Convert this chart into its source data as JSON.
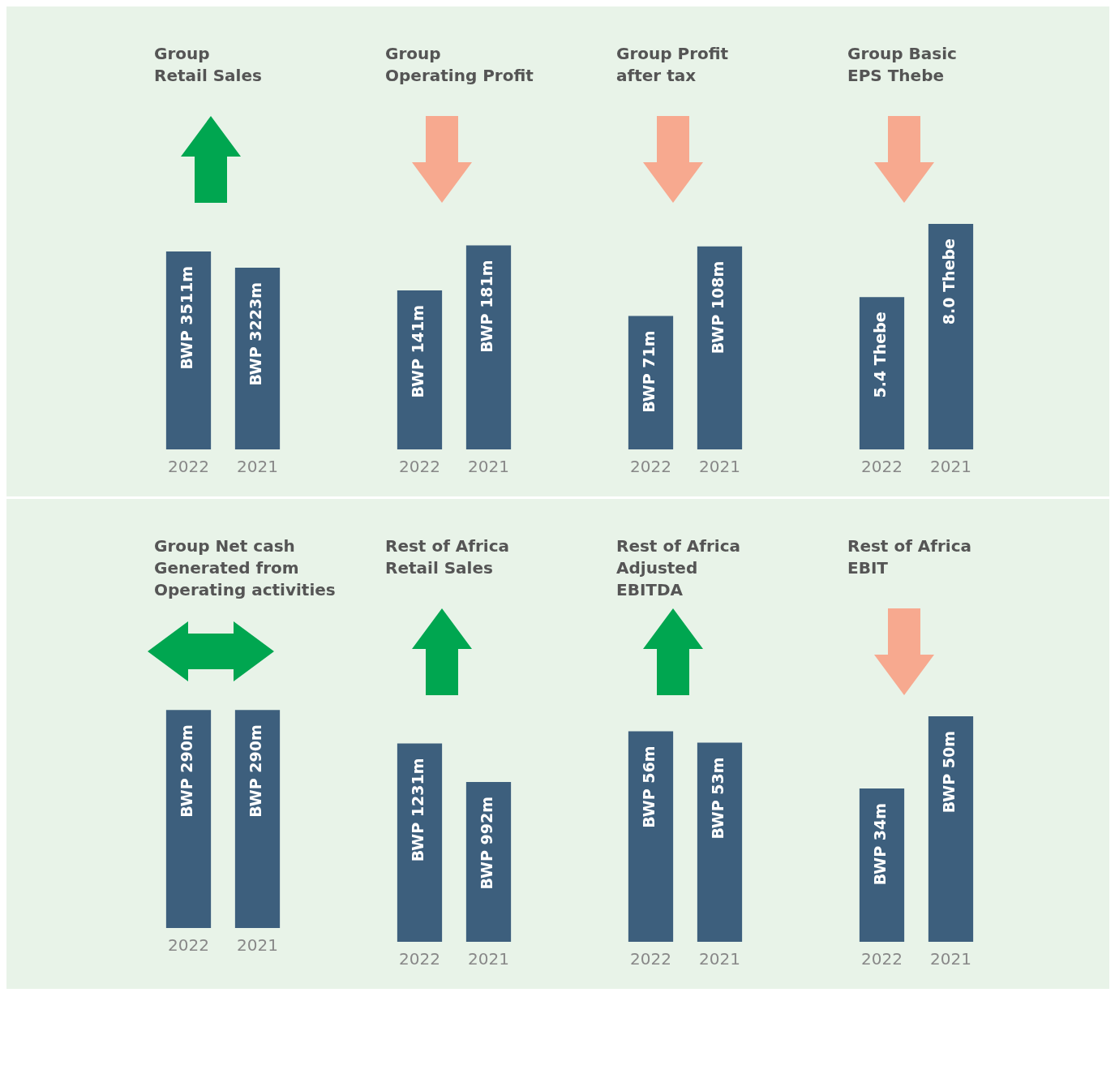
{
  "chart_data": [
    {
      "type": "bar",
      "title": "Group\nRetail Sales",
      "categories": [
        "2022",
        "2021"
      ],
      "values": [
        3511000000,
        3223000000
      ],
      "value_labels": [
        "BWP 3511m",
        "BWP 3223m"
      ],
      "color": "#3d5f7d",
      "tick_labels": "x"
    },
    {
      "type": "bar",
      "title": "Group\nOperating Profit",
      "categories": [
        "2022",
        "2021"
      ],
      "values": [
        141000000,
        181000000
      ],
      "value_labels": [
        "BWP 141m",
        "BWP 181m"
      ],
      "color": "#3d5f7d",
      "tick_labels": "x"
    },
    {
      "type": "bar",
      "title": "Group Profit\nafter tax",
      "categories": [
        "2022",
        "2021"
      ],
      "values": [
        71000000,
        108000000
      ],
      "value_labels": [
        "BWP 71m",
        "BWP 108m"
      ],
      "color": "#3d5f7d",
      "tick_labels": "x"
    },
    {
      "type": "bar",
      "title": "Group Basic\nEPS Thebe",
      "categories": [
        "2022",
        "2021"
      ],
      "values": [
        5.4,
        8.0
      ],
      "value_labels": [
        "5.4 Thebe",
        "8.0 Thebe"
      ],
      "color": "#3d5f7d",
      "tick_labels": "x"
    },
    {
      "type": "bar",
      "title": "Group Net cash\nGenerated from\nOperating activities",
      "categories": [
        "2022",
        "2021"
      ],
      "values": [
        290000000,
        290000000
      ],
      "value_labels": [
        "BWP 290m",
        "BWP 290m"
      ],
      "color": "#3d5f7d",
      "tick_labels": "x"
    },
    {
      "type": "bar",
      "title": "Rest of Africa\nRetail Sales",
      "categories": [
        "2022",
        "2021"
      ],
      "values": [
        1231000000,
        992000000
      ],
      "value_labels": [
        "BWP 1231m",
        "BWP 992m"
      ],
      "color": "#3d5f7d",
      "tick_labels": "x"
    },
    {
      "type": "bar",
      "title": "Rest of Africa\nAdjusted\nEBITDA",
      "categories": [
        "2022",
        "2021"
      ],
      "values": [
        56000000,
        53000000
      ],
      "value_labels": [
        "BWP 56m",
        "BWP 53m"
      ],
      "color": "#3d5f7d",
      "tick_labels": "x"
    },
    {
      "type": "bar",
      "title": "Rest of Africa\nEBIT",
      "categories": [
        "2022",
        "2021"
      ],
      "values": [
        34000000,
        50000000
      ],
      "value_labels": [
        "BWP 34m",
        "BWP 50m"
      ],
      "color": "#3d5f7d",
      "tick_labels": "x"
    }
  ]
}
